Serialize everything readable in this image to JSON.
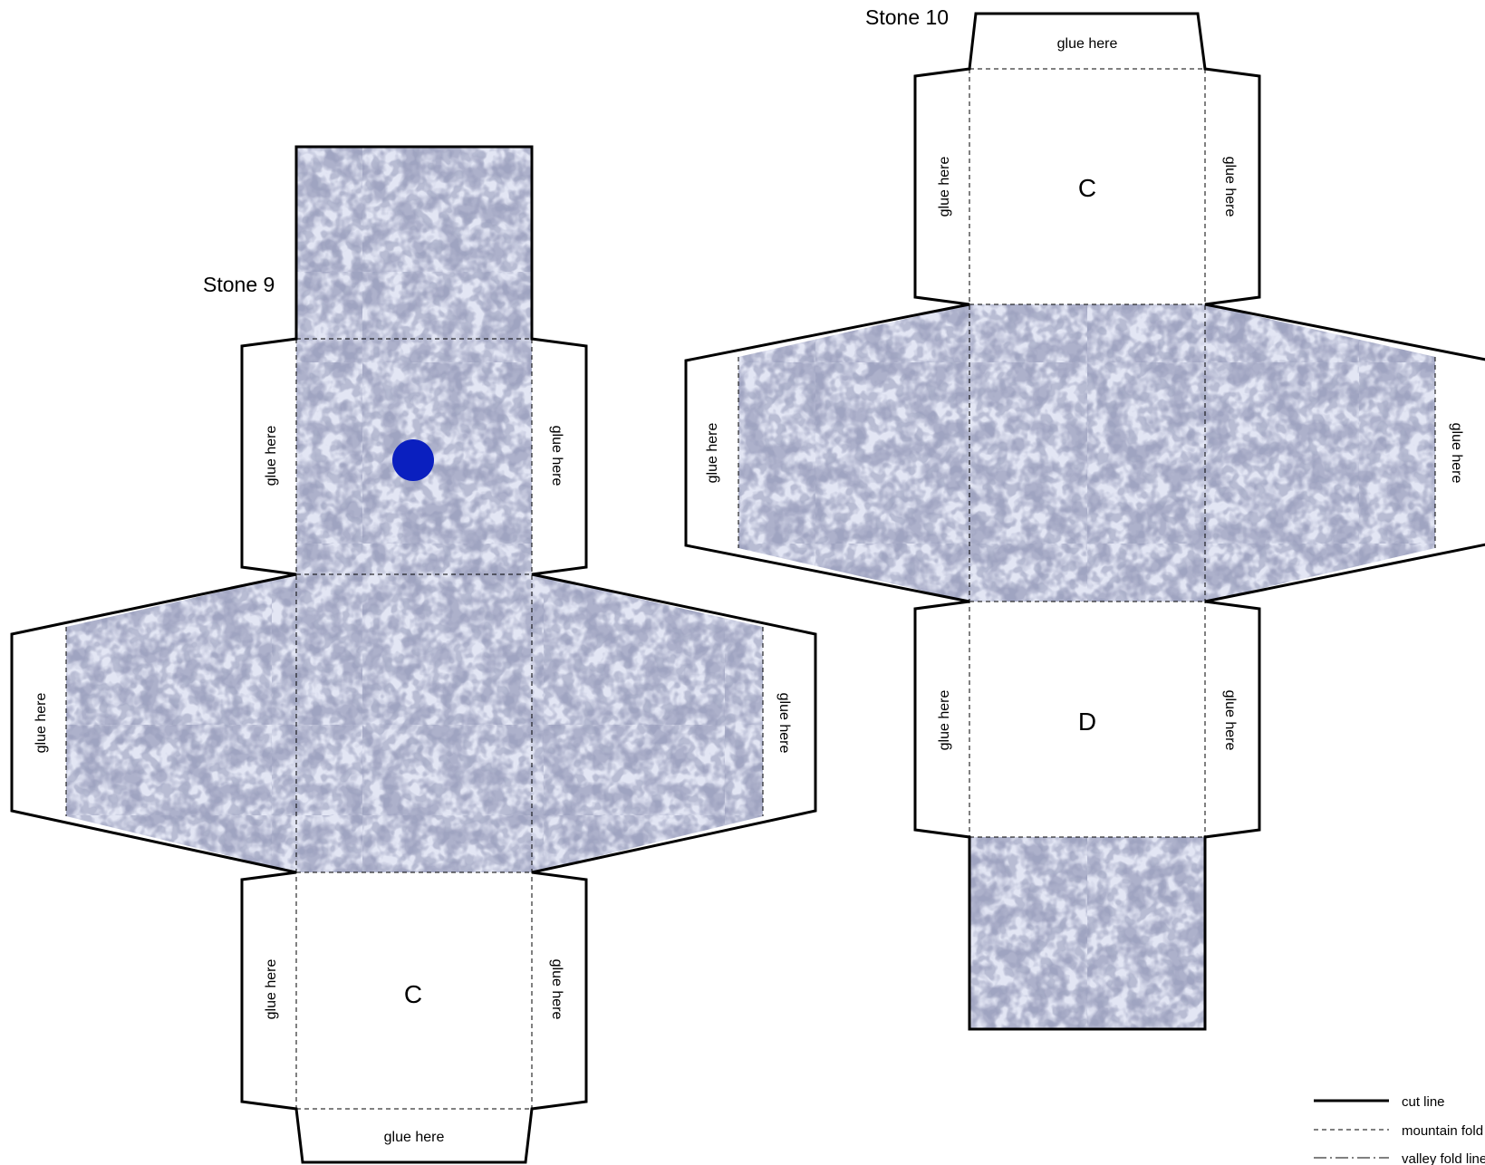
{
  "stones": [
    {
      "title": "Stone 9",
      "glue_label": "glue here",
      "face_bottom": "C",
      "dot_color": "#0a1fbf"
    },
    {
      "title": "Stone 10",
      "glue_label": "glue here",
      "face_top": "C",
      "face_bottom": "D"
    }
  ],
  "legend": {
    "cut": "cut line",
    "mountain": "mountain fold line",
    "valley": "valley fold line"
  },
  "colors": {
    "granite_base": "#dde2f2",
    "granite_dark": "#6e7396",
    "granite_light": "#f7f8ff",
    "line": "#000000"
  }
}
